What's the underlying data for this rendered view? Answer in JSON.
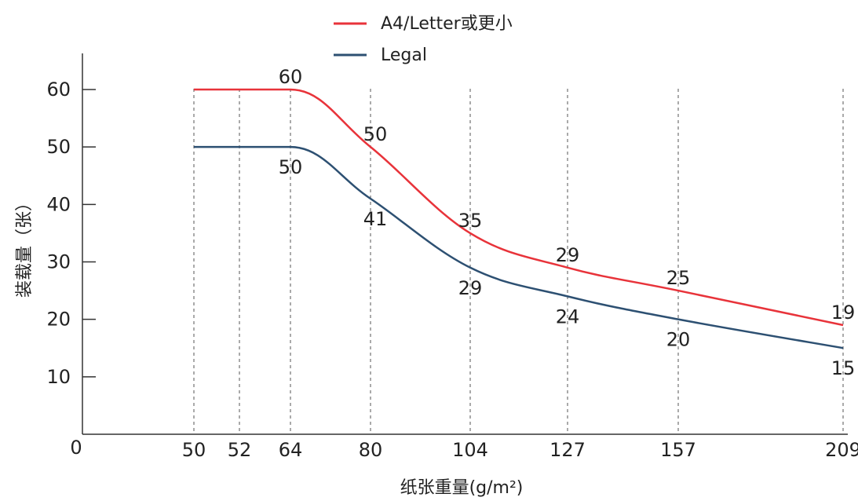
{
  "chart_data": {
    "type": "line",
    "x": [
      50,
      52,
      64,
      80,
      104,
      127,
      157,
      209
    ],
    "x_tick_labels": [
      "50",
      "52",
      "64",
      "80",
      "104",
      "127",
      "157",
      "209"
    ],
    "y_ticks": [
      10,
      20,
      30,
      40,
      50,
      60
    ],
    "y_tick_labels": [
      "10",
      "20",
      "30",
      "40",
      "50",
      "60"
    ],
    "origin_label": "0",
    "ylim": [
      0,
      65
    ],
    "xlabel": "纸张重量(g/m²)",
    "ylabel": "装载量（张）",
    "legend_position": "top-center",
    "series": [
      {
        "name": "A4/Letter或更小",
        "color": "#e8333a",
        "points": [
          {
            "x": 50,
            "y": 60
          },
          {
            "x": 64,
            "y": 60
          },
          {
            "x": 80,
            "y": 50
          },
          {
            "x": 104,
            "y": 35
          },
          {
            "x": 127,
            "y": 29
          },
          {
            "x": 157,
            "y": 25
          },
          {
            "x": 209,
            "y": 19
          }
        ],
        "labels": [
          {
            "x": 64,
            "text": "60"
          },
          {
            "x": 80,
            "text": "50"
          },
          {
            "x": 104,
            "text": "35"
          },
          {
            "x": 127,
            "text": "29"
          },
          {
            "x": 157,
            "text": "25"
          },
          {
            "x": 209,
            "text": "19"
          }
        ]
      },
      {
        "name": "Legal",
        "color": "#2d5072",
        "points": [
          {
            "x": 50,
            "y": 50
          },
          {
            "x": 64,
            "y": 50
          },
          {
            "x": 80,
            "y": 41
          },
          {
            "x": 104,
            "y": 29
          },
          {
            "x": 127,
            "y": 24
          },
          {
            "x": 157,
            "y": 20
          },
          {
            "x": 209,
            "y": 15
          }
        ],
        "labels": [
          {
            "x": 64,
            "text": "50"
          },
          {
            "x": 80,
            "text": "41"
          },
          {
            "x": 104,
            "text": "29"
          },
          {
            "x": 127,
            "text": "24"
          },
          {
            "x": 157,
            "text": "20"
          },
          {
            "x": 209,
            "text": "15"
          }
        ]
      }
    ]
  }
}
